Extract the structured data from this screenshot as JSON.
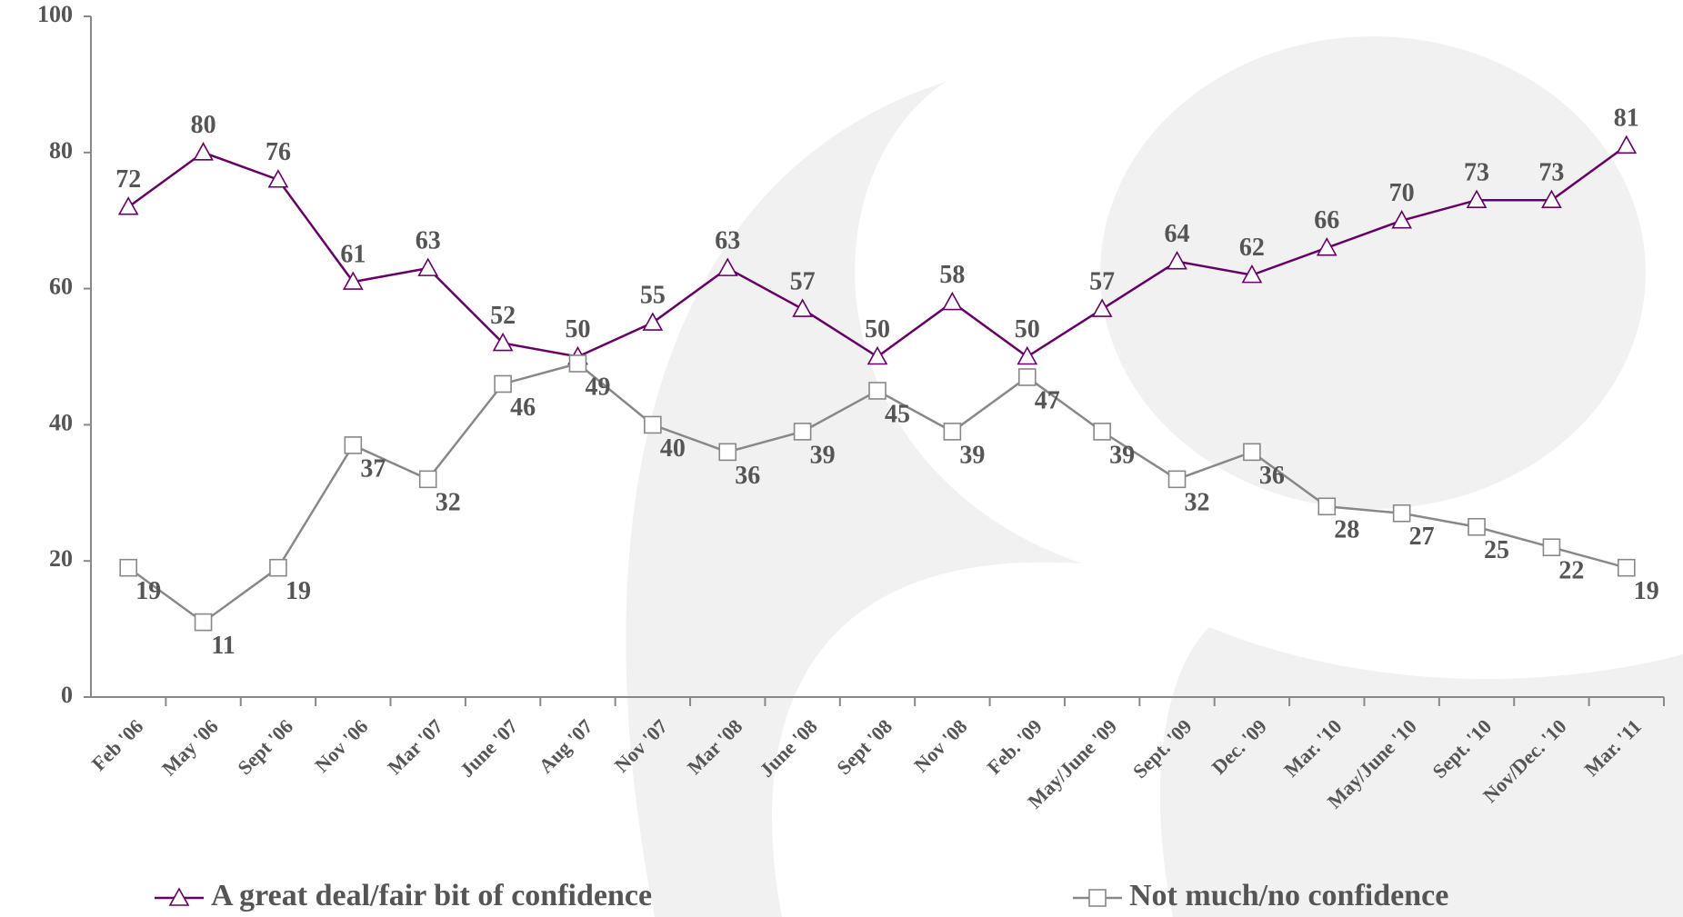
{
  "chart_data": {
    "type": "line",
    "categories": [
      "Feb '06",
      "May '06",
      "Sept '06",
      "Nov '06",
      "Mar '07",
      "June '07",
      "Aug '07",
      "Nov '07",
      "Mar '08",
      "June '08",
      "Sept '08",
      "Nov '08",
      "Feb. '09",
      "May/June '09",
      "Sept. '09",
      "Dec. '09",
      "Mar. '10",
      "May/June '10",
      "Sept. '10",
      "Nov/Dec. '10",
      "Mar. '11"
    ],
    "series": [
      {
        "name": "A great deal/fair bit of confidence",
        "color": "#660066",
        "marker": "triangle",
        "values": [
          72,
          80,
          76,
          61,
          63,
          52,
          50,
          55,
          63,
          57,
          50,
          58,
          50,
          57,
          64,
          62,
          66,
          70,
          73,
          73,
          81
        ]
      },
      {
        "name": "Not much/no confidence",
        "color": "#888888",
        "marker": "square",
        "values": [
          19,
          11,
          19,
          37,
          32,
          46,
          49,
          40,
          36,
          39,
          45,
          39,
          47,
          39,
          32,
          36,
          28,
          27,
          25,
          22,
          19
        ]
      }
    ],
    "ylim": [
      0,
      100
    ],
    "yticks": [
      0,
      20,
      40,
      60,
      80,
      100
    ],
    "grid": false
  }
}
